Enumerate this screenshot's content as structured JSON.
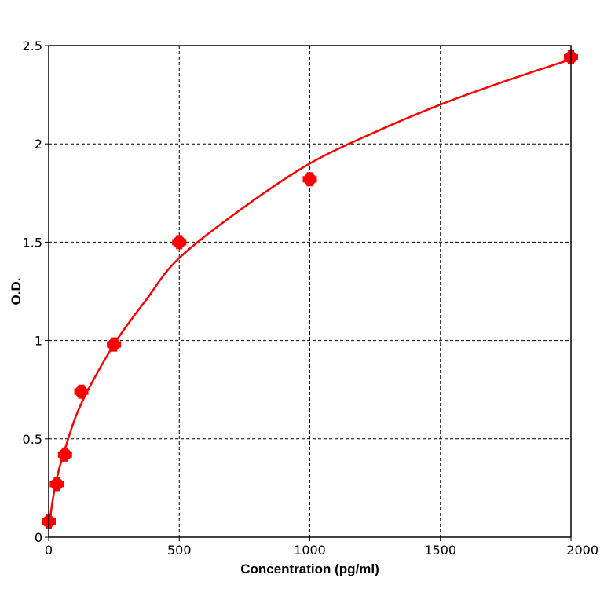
{
  "chart_data": {
    "type": "scatter",
    "title": "",
    "xlabel": "Concentration (pg/ml)",
    "ylabel": "O.D.",
    "xlim": [
      0,
      2000
    ],
    "ylim": [
      0,
      2.5
    ],
    "x_ticks": [
      0,
      500,
      1000,
      1500,
      2000
    ],
    "x_tick_labels": [
      "0",
      "500",
      "1000",
      "1500",
      "2000"
    ],
    "y_ticks": [
      0,
      0.5,
      1,
      1.5,
      2,
      2.5
    ],
    "y_tick_labels": [
      "0",
      "0.5",
      "1",
      "1.5",
      "2",
      "2.5"
    ],
    "grid": true,
    "grid_style": "dashed",
    "legend": "none",
    "series": [
      {
        "kind": "points",
        "color": "#ff0000",
        "x": [
          0,
          31.25,
          62.5,
          125,
          250,
          500,
          1000,
          2000
        ],
        "y": [
          0.08,
          0.27,
          0.42,
          0.74,
          0.98,
          1.5,
          1.82,
          2.44
        ]
      },
      {
        "kind": "fitted-curve",
        "color": "#ff0000",
        "x": [
          0,
          15.6,
          31.25,
          62.5,
          125,
          250,
          375,
          500,
          750,
          1000,
          1250,
          1500,
          1750,
          2000
        ],
        "y": [
          0.05,
          0.19,
          0.3,
          0.45,
          0.68,
          0.98,
          1.21,
          1.42,
          1.68,
          1.9,
          2.06,
          2.2,
          2.32,
          2.43
        ]
      }
    ]
  }
}
